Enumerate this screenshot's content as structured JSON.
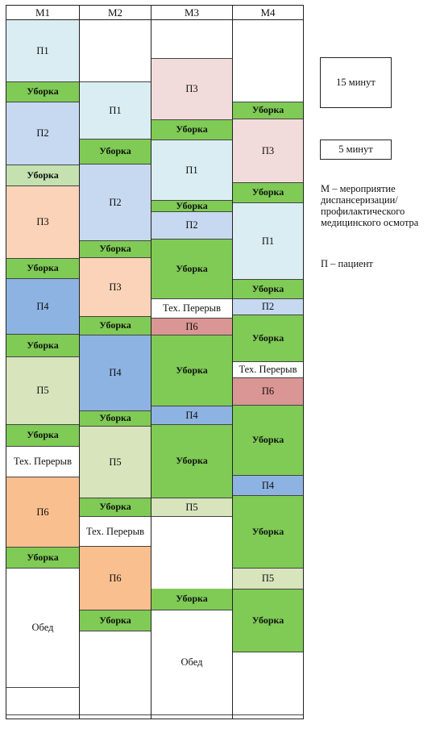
{
  "colors": {
    "cleaning": "#7fcb55",
    "cleaning_light": "#c5e1b0",
    "p1": "#daedf2",
    "p2": "#c6d9f0",
    "p3_peach": "#fad3b8",
    "p3_pink": "#f2dcdb",
    "p4": "#8db3e2",
    "p5": "#d8e4bc",
    "p6_orange": "#fabf8f",
    "p6_red": "#da9694",
    "white": "#ffffff"
  },
  "columns": [
    {
      "header": "М1",
      "blocks": [
        {
          "label": "П1",
          "type": "patient",
          "color": "p1"
        },
        {
          "label": "Уборка",
          "type": "cleaning",
          "color": "cleaning"
        },
        {
          "label": "П2",
          "type": "patient",
          "color": "p2"
        },
        {
          "label": "Уборка",
          "type": "cleaning",
          "color": "cleaning_light"
        },
        {
          "label": "П3",
          "type": "patient",
          "color": "p3_peach"
        },
        {
          "label": "Уборка",
          "type": "cleaning",
          "color": "cleaning"
        },
        {
          "label": "П4",
          "type": "patient",
          "color": "p4"
        },
        {
          "label": "Уборка",
          "type": "cleaning",
          "color": "cleaning"
        },
        {
          "label": "П5",
          "type": "patient",
          "color": "p5"
        },
        {
          "label": "Уборка",
          "type": "cleaning",
          "color": "cleaning"
        },
        {
          "label": "Тех. Перерыв",
          "type": "break",
          "color": "white"
        },
        {
          "label": "П6",
          "type": "patient",
          "color": "p6_orange"
        },
        {
          "label": "Уборка",
          "type": "cleaning",
          "color": "cleaning"
        },
        {
          "label": "Обед",
          "type": "lunch",
          "color": "white"
        },
        {
          "label": "",
          "type": "empty",
          "color": "white"
        }
      ]
    },
    {
      "header": "М2",
      "blocks": [
        {
          "label": "",
          "type": "empty",
          "color": "white"
        },
        {
          "label": "П1",
          "type": "patient",
          "color": "p1"
        },
        {
          "label": "Уборка",
          "type": "cleaning",
          "color": "cleaning"
        },
        {
          "label": "П2",
          "type": "patient",
          "color": "p2"
        },
        {
          "label": "Уборка",
          "type": "cleaning",
          "color": "cleaning"
        },
        {
          "label": "П3",
          "type": "patient",
          "color": "p3_peach"
        },
        {
          "label": "Уборка",
          "type": "cleaning",
          "color": "cleaning"
        },
        {
          "label": "П4",
          "type": "patient",
          "color": "p4"
        },
        {
          "label": "Уборка",
          "type": "cleaning",
          "color": "cleaning"
        },
        {
          "label": "П5",
          "type": "patient",
          "color": "p5"
        },
        {
          "label": "Уборка",
          "type": "cleaning",
          "color": "cleaning"
        },
        {
          "label": "Тех. Перерыв",
          "type": "break",
          "color": "white"
        },
        {
          "label": "П6",
          "type": "patient",
          "color": "p6_orange"
        },
        {
          "label": "Уборка",
          "type": "cleaning",
          "color": "cleaning"
        },
        {
          "label": "",
          "type": "empty",
          "color": "white"
        }
      ]
    },
    {
      "header": "М3",
      "blocks": [
        {
          "label": "",
          "type": "empty",
          "color": "white"
        },
        {
          "label": "П3",
          "type": "patient",
          "color": "p3_pink"
        },
        {
          "label": "Уборка",
          "type": "cleaning",
          "color": "cleaning"
        },
        {
          "label": "П1",
          "type": "patient",
          "color": "p1"
        },
        {
          "label": "Уборка",
          "type": "cleaning",
          "color": "cleaning"
        },
        {
          "label": "П2",
          "type": "patient",
          "color": "p2"
        },
        {
          "label": "Уборка",
          "type": "cleaning",
          "color": "cleaning"
        },
        {
          "label": "Тех. Перерыв",
          "type": "break",
          "color": "white"
        },
        {
          "label": "П6",
          "type": "patient",
          "color": "p6_red"
        },
        {
          "label": "Уборка",
          "type": "cleaning",
          "color": "cleaning"
        },
        {
          "label": "П4",
          "type": "patient",
          "color": "p4"
        },
        {
          "label": "Уборка",
          "type": "cleaning",
          "color": "cleaning"
        },
        {
          "label": "П5",
          "type": "patient",
          "color": "p5"
        },
        {
          "label": "Уборка",
          "type": "cleaning",
          "color": "cleaning"
        },
        {
          "label": "Обед",
          "type": "lunch",
          "color": "white"
        }
      ]
    },
    {
      "header": "М4",
      "blocks": [
        {
          "label": "",
          "type": "empty",
          "color": "white"
        },
        {
          "label": "Уборка",
          "type": "cleaning",
          "color": "cleaning"
        },
        {
          "label": "П3",
          "type": "patient",
          "color": "p3_pink"
        },
        {
          "label": "Уборка",
          "type": "cleaning",
          "color": "cleaning"
        },
        {
          "label": "П1",
          "type": "patient",
          "color": "p1"
        },
        {
          "label": "Уборка",
          "type": "cleaning",
          "color": "cleaning"
        },
        {
          "label": "П2",
          "type": "patient",
          "color": "p2"
        },
        {
          "label": "Уборка",
          "type": "cleaning",
          "color": "cleaning"
        },
        {
          "label": "Тех. Перерыв",
          "type": "break",
          "color": "white"
        },
        {
          "label": "П6",
          "type": "patient",
          "color": "p6_red"
        },
        {
          "label": "Уборка",
          "type": "cleaning",
          "color": "cleaning"
        },
        {
          "label": "П4",
          "type": "patient",
          "color": "p4"
        },
        {
          "label": "Уборка",
          "type": "cleaning",
          "color": "cleaning"
        },
        {
          "label": "П5",
          "type": "patient",
          "color": "p5"
        },
        {
          "label": "Уборка",
          "type": "cleaning",
          "color": "cleaning"
        },
        {
          "label": "",
          "type": "empty",
          "color": "white"
        }
      ]
    }
  ],
  "legend": {
    "key_15": "15 минут",
    "key_5": "5 минут",
    "m_definition": "М – мероприятие диспансеризации/ профилактического медицинского осмотра",
    "p_definition": "П – пациент"
  }
}
